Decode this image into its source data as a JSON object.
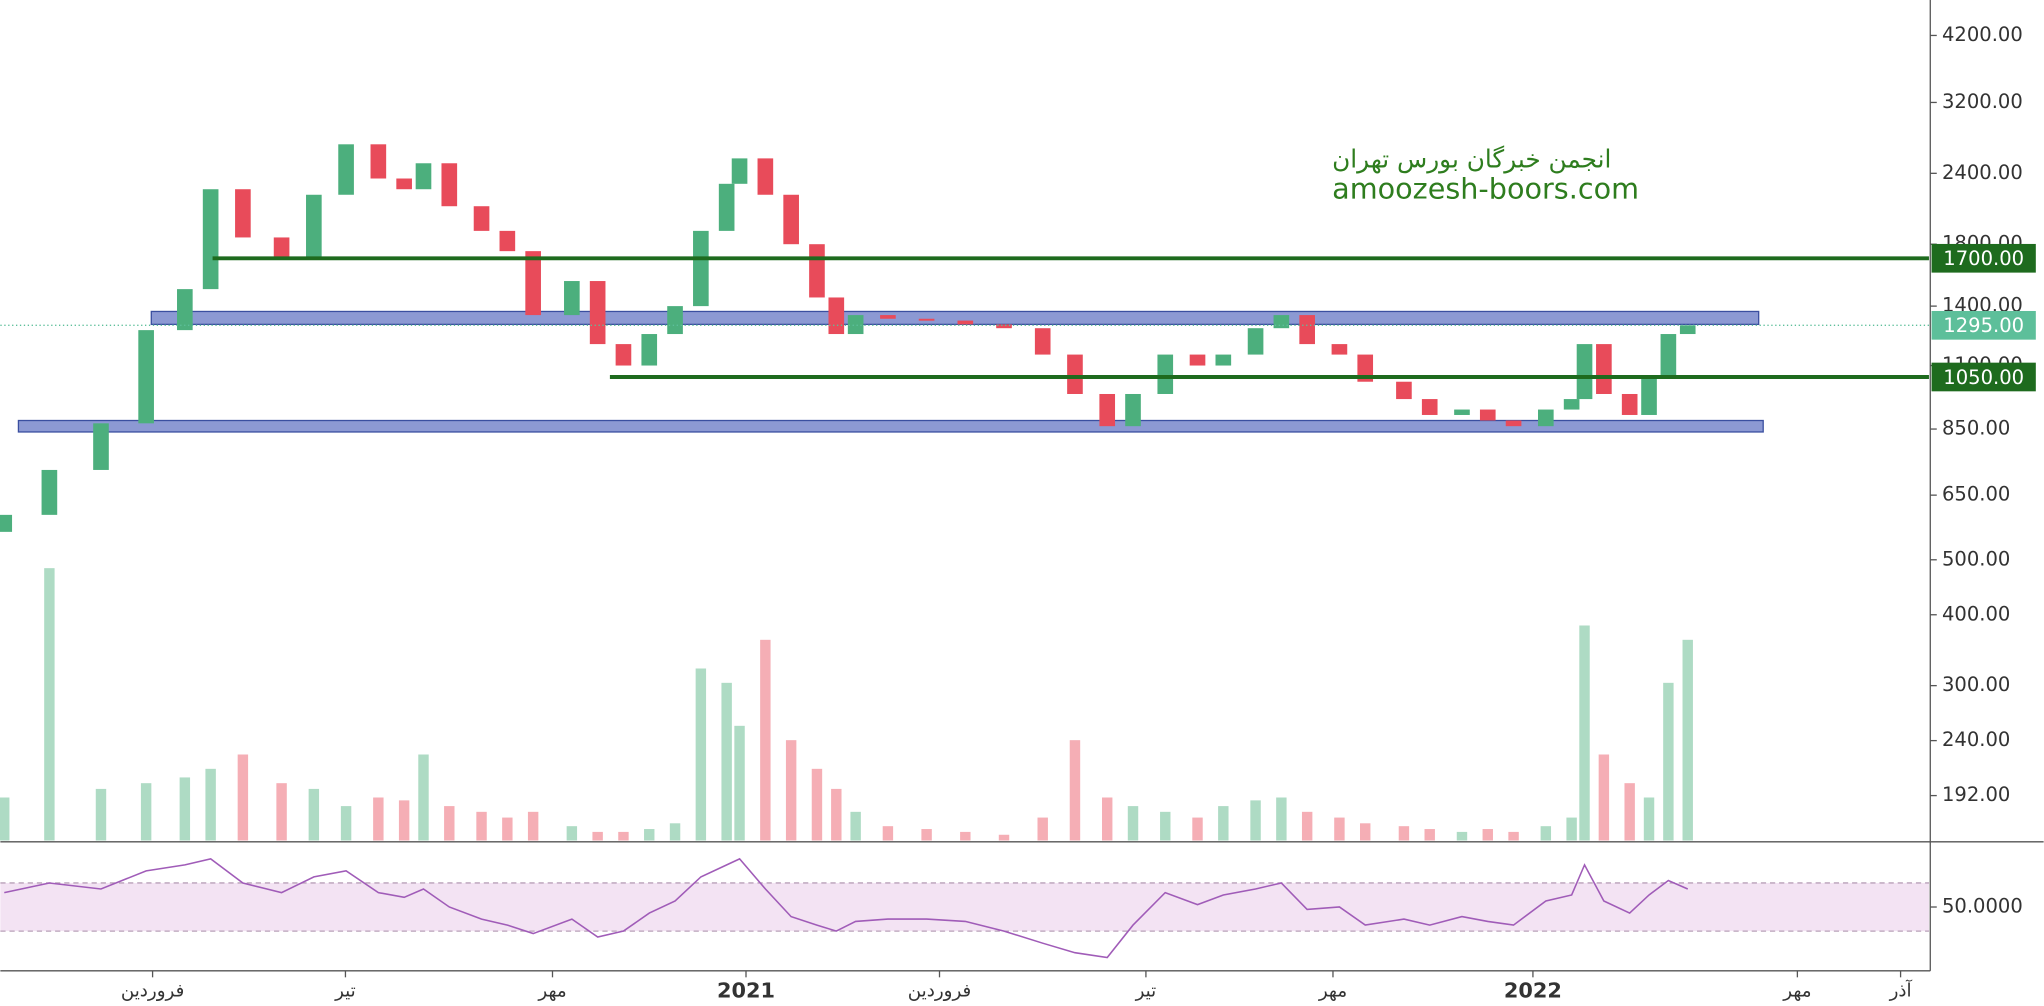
{
  "chart_data": {
    "type": "candlestick",
    "log": true,
    "ylim": [
      160,
      4850
    ],
    "yticks": [
      {
        "value": 4200,
        "label": "4200.00"
      },
      {
        "value": 3200,
        "label": "3200.00"
      },
      {
        "value": 2400,
        "label": "2400.00"
      },
      {
        "value": 1800,
        "label": "1800.00"
      },
      {
        "value": 1400,
        "label": "1400.00"
      },
      {
        "value": 1100,
        "label": "1100.00"
      },
      {
        "value": 850,
        "label": "850.00"
      },
      {
        "value": 650,
        "label": "650.00"
      },
      {
        "value": 500,
        "label": "500.00"
      },
      {
        "value": 400,
        "label": "400.00"
      },
      {
        "value": 300,
        "label": "300.00"
      },
      {
        "value": 240,
        "label": "240.00"
      },
      {
        "value": 192,
        "label": "192.00"
      }
    ],
    "xlim": [
      -2.36,
      27.54
    ],
    "xticks": [
      {
        "value": 0,
        "label": "فروردین"
      },
      {
        "value": 2.99,
        "label": "تیر"
      },
      {
        "value": 6.2,
        "label": "مهر"
      },
      {
        "value": 9.2,
        "label": "2021"
      },
      {
        "value": 12.2,
        "label": "فروردین"
      },
      {
        "value": 15.4,
        "label": "تیر"
      },
      {
        "value": 18.3,
        "label": "مهر"
      },
      {
        "value": 21.4,
        "label": "2022"
      },
      {
        "value": 25.5,
        "label": "مهر"
      },
      {
        "value": 27.1,
        "label": "آذر"
      }
    ],
    "x": [
      -2.3,
      -1.6,
      -0.8,
      -0.1,
      0.5,
      0.9,
      1.4,
      2.0,
      2.5,
      3.0,
      3.5,
      3.9,
      4.2,
      4.6,
      5.1,
      5.5,
      5.9,
      6.5,
      6.9,
      7.3,
      7.7,
      8.1,
      8.5,
      8.9,
      9.1,
      9.5,
      9.9,
      10.3,
      10.6,
      10.9,
      11.4,
      12.0,
      12.6,
      13.2,
      13.8,
      14.3,
      14.8,
      15.2,
      15.7,
      16.2,
      16.6,
      17.1,
      17.5,
      17.9,
      18.4,
      18.8,
      19.4,
      19.8,
      20.3,
      20.7,
      21.1,
      21.6,
      22.0,
      22.2,
      22.5,
      22.9,
      23.2,
      23.5,
      23.8
    ],
    "open": [
      560,
      600,
      720,
      870,
      1270,
      1500,
      2250,
      1850,
      1700,
      2200,
      2700,
      2350,
      2250,
      2500,
      2100,
      1900,
      1750,
      1350,
      1550,
      1200,
      1100,
      1250,
      1400,
      1900,
      2300,
      2550,
      2200,
      1800,
      1450,
      1250,
      1350,
      1330,
      1320,
      1300,
      1280,
      1150,
      980,
      860,
      980,
      1150,
      1100,
      1150,
      1280,
      1350,
      1200,
      1150,
      1030,
      960,
      900,
      920,
      880,
      860,
      920,
      960,
      1200,
      980,
      900,
      1050,
      1250
    ],
    "close": [
      600,
      720,
      870,
      1270,
      1500,
      2250,
      1850,
      1700,
      2200,
      2700,
      2350,
      2250,
      2500,
      2100,
      1900,
      1750,
      1350,
      1550,
      1200,
      1100,
      1250,
      1400,
      1900,
      2300,
      2550,
      2200,
      1800,
      1450,
      1250,
      1350,
      1330,
      1320,
      1300,
      1280,
      1150,
      980,
      860,
      980,
      1150,
      1100,
      1150,
      1280,
      1350,
      1200,
      1150,
      1030,
      960,
      900,
      920,
      880,
      860,
      920,
      960,
      1200,
      980,
      900,
      1050,
      1250,
      1295
    ],
    "color_up": "#4caf7d",
    "color_down": "#e84b5a",
    "volume": [
      15,
      95,
      18,
      20,
      22,
      25,
      30,
      20,
      18,
      12,
      15,
      14,
      30,
      12,
      10,
      8,
      10,
      5,
      3,
      3,
      4,
      6,
      60,
      55,
      40,
      70,
      35,
      25,
      18,
      10,
      5,
      4,
      3,
      2,
      8,
      35,
      15,
      12,
      10,
      8,
      12,
      14,
      15,
      10,
      8,
      6,
      5,
      4,
      3,
      4,
      3,
      5,
      8,
      75,
      30,
      20,
      15,
      55,
      70
    ],
    "vlim": [
      0,
      100
    ],
    "levels": [
      {
        "value": 1700,
        "label": "1700.00",
        "start": 0.93,
        "color": "#1e6b1e"
      },
      {
        "value": 1050,
        "label": "1050.00",
        "start": 7.09,
        "color": "#1e6b1e"
      }
    ],
    "zones": [
      {
        "low": 1300,
        "high": 1370,
        "start": -0.02,
        "end": 24.9,
        "color": "#6f80c8"
      },
      {
        "low": 840,
        "high": 880,
        "start": -2.08,
        "end": 24.97,
        "color": "#6f80c8"
      }
    ],
    "last": {
      "value": 1295,
      "label": "1295.00",
      "color": "#5dbf9a"
    },
    "watermark": [
      "انجمن خبرگان بورس تهران",
      "amoozesh-boors.com"
    ],
    "rsi": {
      "ylim": [
        -3,
        102
      ],
      "yticks": [
        {
          "value": 50,
          "label": "50.0000"
        }
      ],
      "bands": [
        30,
        70
      ],
      "color": "#a05cb8",
      "values": [
        62,
        70,
        65,
        80,
        85,
        90,
        70,
        62,
        75,
        80,
        62,
        58,
        65,
        50,
        40,
        35,
        28,
        40,
        25,
        30,
        45,
        55,
        75,
        85,
        90,
        65,
        42,
        35,
        30,
        38,
        40,
        40,
        38,
        30,
        20,
        12,
        8,
        35,
        62,
        52,
        60,
        65,
        70,
        48,
        50,
        35,
        40,
        35,
        42,
        38,
        35,
        55,
        60,
        85,
        55,
        45,
        60,
        72,
        65
      ]
    }
  }
}
